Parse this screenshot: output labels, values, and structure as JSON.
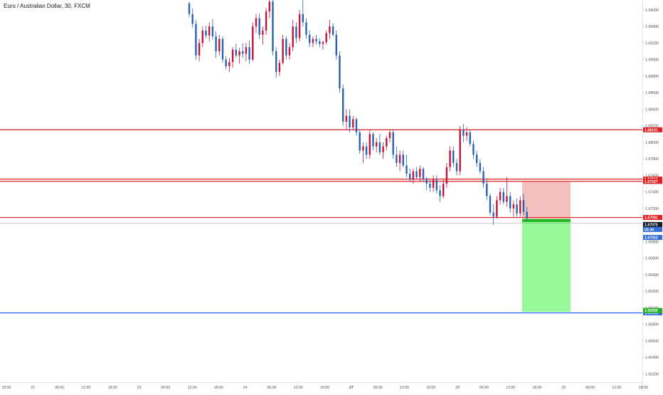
{
  "chart_data": {
    "type": "candlestick",
    "title": "Euro / Australian Dollar, 30, FXCM",
    "colors": {
      "up": "#c0143c",
      "down": "#2962ad",
      "level_red": "#e02020",
      "level_blue": "#2962ff",
      "last_price": "#131722",
      "stop_zone": "#f2bcbc",
      "target_zone": "#90f890",
      "entry_line": "#14a014",
      "price_tag_blue": "#2f6fd6",
      "price_tag_green": "#20b020"
    },
    "y_axis": {
      "range": [
        1.651,
        1.6972
      ],
      "ticks": [
        "1.69600",
        "1.69400",
        "1.69200",
        "1.69000",
        "1.68800",
        "1.68600",
        "1.68400",
        "1.68200",
        "1.68000",
        "1.67800",
        "1.67600",
        "1.67400",
        "1.67200",
        "1.67000",
        "1.66800",
        "1.66600",
        "1.66400",
        "1.66200",
        "1.66000",
        "1.65800",
        "1.65600",
        "1.65400",
        "1.65200"
      ]
    },
    "x_axis": {
      "labels": [
        "18:00",
        "22",
        "06:00",
        "12:00",
        "18:00",
        "23",
        "06:00",
        "12:00",
        "18:00",
        "24",
        "06:00",
        "12:00",
        "18:00",
        "27",
        "06:00",
        "12:00",
        "18:00",
        "28",
        "06:00",
        "12:00",
        "18:00",
        "29",
        "06:00",
        "12:00",
        "18:00"
      ],
      "bold_labels": [
        "27"
      ]
    },
    "levels": [
      {
        "name": "resistance-1",
        "price": 1.68151,
        "label": "1.68151",
        "kind": "red"
      },
      {
        "name": "resistance-2",
        "price": 1.67555,
        "label": "1.67555",
        "kind": "red"
      },
      {
        "name": "resistance-3",
        "price": 1.67527,
        "label": "1.67527",
        "kind": "red"
      },
      {
        "name": "support-1",
        "price": 1.67091,
        "label": "1.67091",
        "kind": "red"
      },
      {
        "name": "target-line",
        "price": 1.65938,
        "label": "1.65938",
        "kind": "blue"
      }
    ],
    "price_tags": [
      {
        "name": "last-price-tag",
        "price": 1.67075,
        "label": "1.67075",
        "kind": "last"
      },
      {
        "name": "countdown-tag",
        "label": "00:30",
        "kind": "blue"
      },
      {
        "name": "bid-tag",
        "price": 1.67022,
        "label": "1.67022",
        "kind": "blue"
      },
      {
        "name": "tp-tag",
        "price": 1.6595,
        "label": "1.65950",
        "kind": "green"
      }
    ],
    "position": {
      "direction": "short",
      "entry": 1.67075,
      "stop": 1.6752,
      "target": 1.6595
    },
    "candles": [
      [
        1.6968,
        1.697,
        1.6951,
        1.6955
      ],
      [
        1.6955,
        1.6962,
        1.6938,
        1.6943
      ],
      [
        1.6943,
        1.6948,
        1.69,
        1.6905
      ],
      [
        1.6905,
        1.6925,
        1.6898,
        1.692
      ],
      [
        1.692,
        1.694,
        1.6915,
        1.6935
      ],
      [
        1.6935,
        1.6941,
        1.6926,
        1.6929
      ],
      [
        1.6929,
        1.6945,
        1.6922,
        1.694
      ],
      [
        1.694,
        1.6949,
        1.6924,
        1.6928
      ],
      [
        1.6928,
        1.6934,
        1.6902,
        1.691
      ],
      [
        1.691,
        1.693,
        1.6905,
        1.6925
      ],
      [
        1.6925,
        1.6928,
        1.6896,
        1.69
      ],
      [
        1.69,
        1.6904,
        1.6888,
        1.6892
      ],
      [
        1.6892,
        1.6902,
        1.6885,
        1.6897
      ],
      [
        1.6897,
        1.6915,
        1.689,
        1.6912
      ],
      [
        1.6912,
        1.6919,
        1.6902,
        1.6905
      ],
      [
        1.6905,
        1.6914,
        1.6895,
        1.691
      ],
      [
        1.691,
        1.692,
        1.6902,
        1.6907
      ],
      [
        1.6907,
        1.692,
        1.6898,
        1.6915
      ],
      [
        1.6915,
        1.6923,
        1.6895,
        1.69
      ],
      [
        1.69,
        1.6945,
        1.6898,
        1.694
      ],
      [
        1.694,
        1.6955,
        1.6932,
        1.695
      ],
      [
        1.695,
        1.6956,
        1.6925,
        1.693
      ],
      [
        1.693,
        1.694,
        1.6918,
        1.6935
      ],
      [
        1.6935,
        1.6962,
        1.693,
        1.6958
      ],
      [
        1.6958,
        1.6975,
        1.695,
        1.697
      ],
      [
        1.697,
        1.6972,
        1.6905,
        1.691
      ],
      [
        1.691,
        1.6915,
        1.6878,
        1.6885
      ],
      [
        1.6885,
        1.69,
        1.688,
        1.6896
      ],
      [
        1.6896,
        1.693,
        1.6894,
        1.6925
      ],
      [
        1.6925,
        1.6928,
        1.69,
        1.6905
      ],
      [
        1.6905,
        1.692,
        1.69,
        1.6915
      ],
      [
        1.6915,
        1.6948,
        1.691,
        1.694
      ],
      [
        1.694,
        1.6945,
        1.692,
        1.6926
      ],
      [
        1.6926,
        1.696,
        1.6922,
        1.6955
      ],
      [
        1.6955,
        1.6975,
        1.694,
        1.6945
      ],
      [
        1.6945,
        1.695,
        1.6925,
        1.693
      ],
      [
        1.693,
        1.6935,
        1.6915,
        1.692
      ],
      [
        1.692,
        1.6928,
        1.6915,
        1.6925
      ],
      [
        1.6925,
        1.693,
        1.6918,
        1.6922
      ],
      [
        1.6922,
        1.6926,
        1.6915,
        1.6919
      ],
      [
        1.6919,
        1.6923,
        1.6912,
        1.6921
      ],
      [
        1.6921,
        1.6935,
        1.6918,
        1.6932
      ],
      [
        1.6932,
        1.6948,
        1.6925,
        1.694
      ],
      [
        1.694,
        1.6944,
        1.6928,
        1.693
      ],
      [
        1.693,
        1.6935,
        1.69,
        1.6905
      ],
      [
        1.6905,
        1.691,
        1.686,
        1.6865
      ],
      [
        1.6865,
        1.687,
        1.682,
        1.6825
      ],
      [
        1.6825,
        1.684,
        1.6815,
        1.6832
      ],
      [
        1.6832,
        1.684,
        1.6812,
        1.6818
      ],
      [
        1.6818,
        1.6832,
        1.6815,
        1.6828
      ],
      [
        1.6828,
        1.683,
        1.6808,
        1.6812
      ],
      [
        1.6812,
        1.6815,
        1.6786,
        1.679
      ],
      [
        1.679,
        1.68,
        1.6775,
        1.6795
      ],
      [
        1.6795,
        1.68,
        1.678,
        1.6785
      ],
      [
        1.6785,
        1.6815,
        1.678,
        1.681
      ],
      [
        1.681,
        1.6812,
        1.679,
        1.6795
      ],
      [
        1.6795,
        1.6805,
        1.6788,
        1.68
      ],
      [
        1.68,
        1.681,
        1.6785,
        1.6788
      ],
      [
        1.6788,
        1.68,
        1.678,
        1.6795
      ],
      [
        1.6795,
        1.6808,
        1.679,
        1.6805
      ],
      [
        1.6805,
        1.6815,
        1.68,
        1.6812
      ],
      [
        1.6812,
        1.6816,
        1.678,
        1.6785
      ],
      [
        1.6785,
        1.6795,
        1.677,
        1.6775
      ],
      [
        1.6775,
        1.679,
        1.6765,
        1.6785
      ],
      [
        1.6785,
        1.679,
        1.677,
        1.6772
      ],
      [
        1.6772,
        1.6785,
        1.6758,
        1.6762
      ],
      [
        1.6762,
        1.6768,
        1.6752,
        1.6755
      ],
      [
        1.6755,
        1.6768,
        1.675,
        1.6765
      ],
      [
        1.6765,
        1.677,
        1.6755,
        1.6758
      ],
      [
        1.6758,
        1.6772,
        1.6752,
        1.6768
      ],
      [
        1.6768,
        1.677,
        1.6752,
        1.6755
      ],
      [
        1.6755,
        1.6758,
        1.6742,
        1.675
      ],
      [
        1.675,
        1.6755,
        1.674,
        1.6745
      ],
      [
        1.6745,
        1.676,
        1.674,
        1.6755
      ],
      [
        1.6755,
        1.676,
        1.6738,
        1.6742
      ],
      [
        1.6742,
        1.6748,
        1.6728,
        1.6735
      ],
      [
        1.6735,
        1.6755,
        1.6732,
        1.675
      ],
      [
        1.675,
        1.6775,
        1.6745,
        1.677
      ],
      [
        1.677,
        1.6795,
        1.6765,
        1.679
      ],
      [
        1.679,
        1.6795,
        1.677,
        1.6775
      ],
      [
        1.6775,
        1.678,
        1.676,
        1.6765
      ],
      [
        1.6765,
        1.682,
        1.676,
        1.6815
      ],
      [
        1.6815,
        1.6822,
        1.68,
        1.6808
      ],
      [
        1.6808,
        1.6818,
        1.6802,
        1.6812
      ],
      [
        1.6812,
        1.6815,
        1.6795,
        1.6798
      ],
      [
        1.6798,
        1.6802,
        1.678,
        1.6785
      ],
      [
        1.6785,
        1.679,
        1.677,
        1.6775
      ],
      [
        1.6775,
        1.678,
        1.6762,
        1.6765
      ],
      [
        1.6765,
        1.677,
        1.6745,
        1.675
      ],
      [
        1.675,
        1.6755,
        1.673,
        1.6735
      ],
      [
        1.6735,
        1.6738,
        1.6712,
        1.6715
      ],
      [
        1.6715,
        1.6725,
        1.67,
        1.671
      ],
      [
        1.671,
        1.6735,
        1.6708,
        1.673
      ],
      [
        1.673,
        1.6745,
        1.6725,
        1.674
      ],
      [
        1.674,
        1.6745,
        1.6725,
        1.6728
      ],
      [
        1.6728,
        1.6758,
        1.6722,
        1.6735
      ],
      [
        1.6735,
        1.674,
        1.6715,
        1.672
      ],
      [
        1.672,
        1.673,
        1.671,
        1.6725
      ],
      [
        1.6725,
        1.6732,
        1.671,
        1.6714
      ],
      [
        1.6714,
        1.6735,
        1.671,
        1.673
      ],
      [
        1.673,
        1.6738,
        1.6712,
        1.6716
      ],
      [
        1.6716,
        1.6722,
        1.6705,
        1.6708
      ]
    ]
  }
}
